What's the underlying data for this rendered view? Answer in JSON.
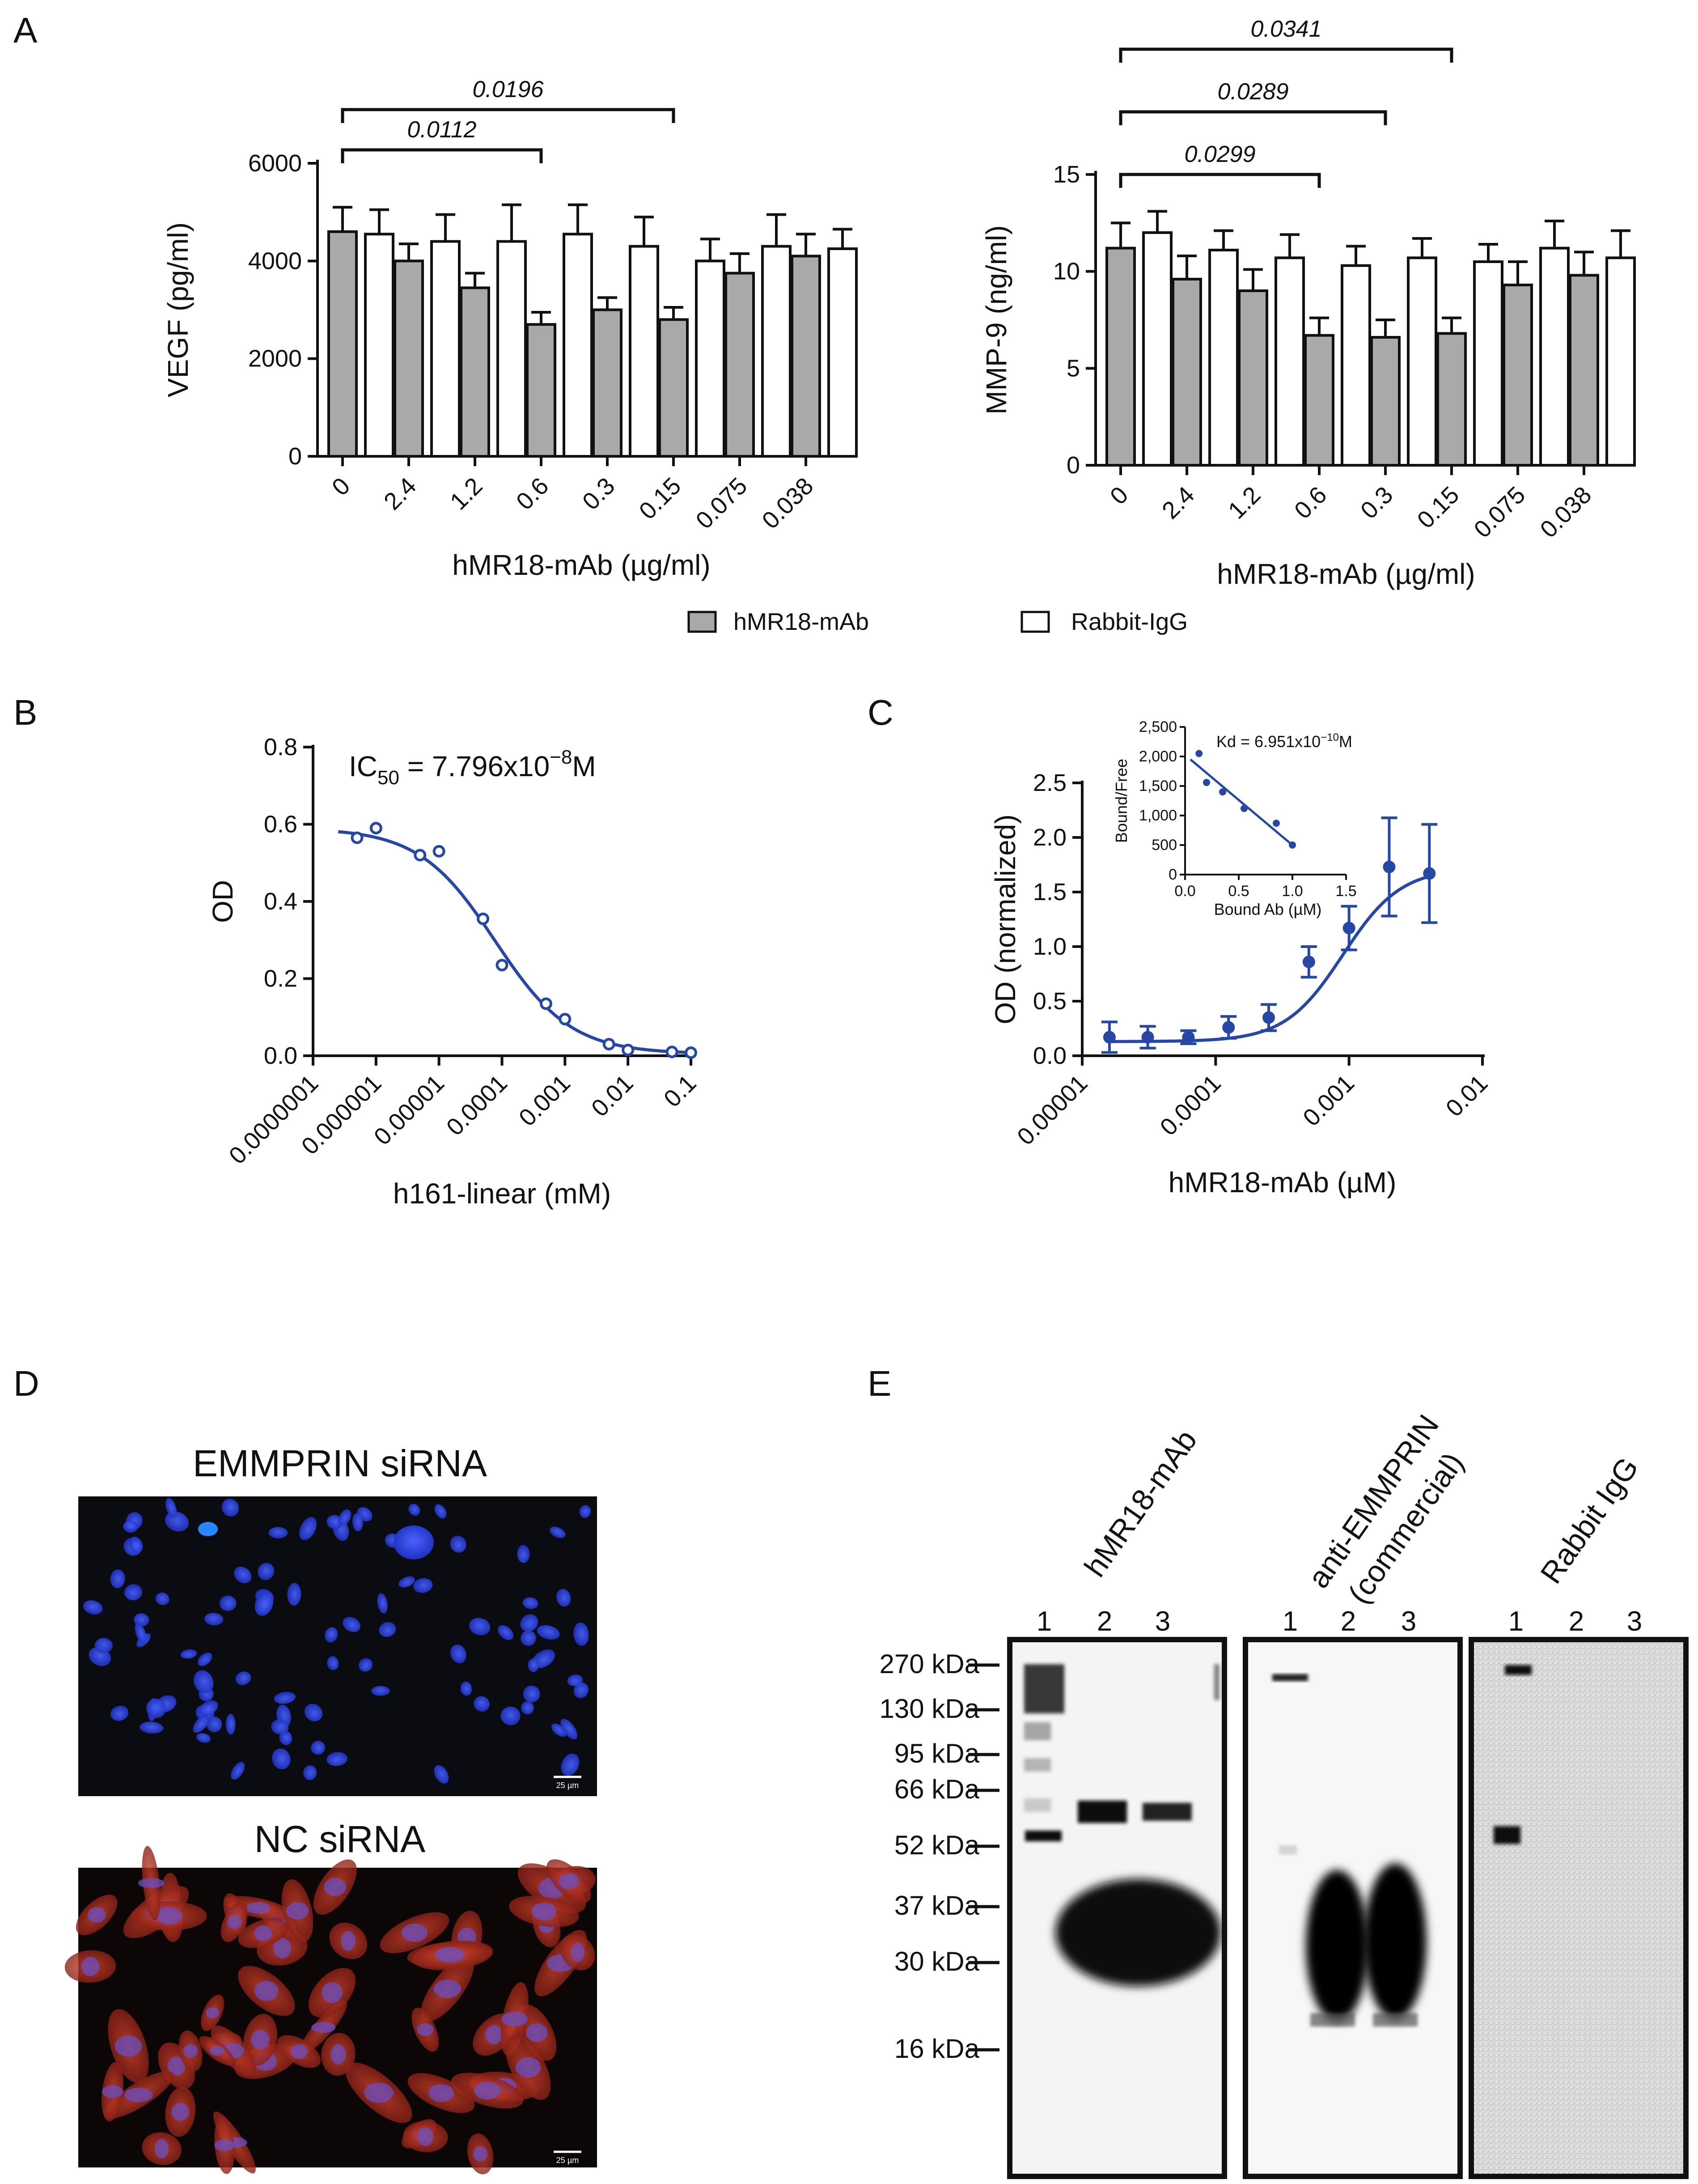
{
  "colors": {
    "hmr18_bar": "#a9a9a9",
    "rabbit_bar": "#ffffff",
    "curve": "#2747a4",
    "axis": "#111111"
  },
  "panel_labels": {
    "a": "A",
    "b": "B",
    "c": "C",
    "d": "D",
    "e": "E"
  },
  "legend": {
    "hmr18": "hMR18-mAb",
    "rabbit": "Rabbit-IgG"
  },
  "chart_data": [
    {
      "id": "A-left",
      "type": "bar",
      "ylabel": "VEGF (pg/ml)",
      "xlabel": "hMR18-mAb (µg/ml)",
      "categories": [
        "0",
        "2.4",
        "1.2",
        "0.6",
        "0.3",
        "0.15",
        "0.075",
        "0.038"
      ],
      "ylim": [
        0,
        6000
      ],
      "yticks": [
        "0",
        "2000",
        "4000",
        "6000"
      ],
      "ytick_values": [
        0,
        2000,
        4000,
        6000
      ],
      "series": [
        {
          "name": "hMR18-mAb",
          "values": [
            4600,
            4000,
            3450,
            2700,
            3000,
            2800,
            3750,
            4100
          ],
          "errors": [
            500,
            350,
            300,
            250,
            250,
            250,
            400,
            450
          ]
        },
        {
          "name": "Rabbit-IgG",
          "values": [
            4550,
            4400,
            4400,
            4550,
            4300,
            4000,
            4300,
            4250
          ],
          "errors": [
            500,
            550,
            750,
            600,
            600,
            450,
            650,
            400
          ]
        }
      ],
      "brackets": [
        {
          "from": 0,
          "to": 3,
          "label": "0.0112",
          "level": 0
        },
        {
          "from": 0,
          "to": 5,
          "label": "0.0196",
          "level": 1
        }
      ]
    },
    {
      "id": "A-right",
      "type": "bar",
      "ylabel": "MMP-9 (ng/ml)",
      "xlabel": "hMR18-mAb (µg/ml)",
      "categories": [
        "0",
        "2.4",
        "1.2",
        "0.6",
        "0.3",
        "0.15",
        "0.075",
        "0.038"
      ],
      "ylim": [
        0,
        15
      ],
      "yticks": [
        "0",
        "5",
        "10",
        "15"
      ],
      "ytick_values": [
        0,
        5,
        10,
        15
      ],
      "series": [
        {
          "name": "hMR18-mAb",
          "values": [
            11.2,
            9.6,
            9.0,
            6.7,
            6.6,
            6.8,
            9.3,
            9.8
          ],
          "errors": [
            1.3,
            1.2,
            1.1,
            0.9,
            0.9,
            0.8,
            1.2,
            1.2
          ]
        },
        {
          "name": "Rabbit-IgG",
          "values": [
            12.0,
            11.1,
            10.7,
            10.3,
            10.7,
            10.5,
            11.2,
            10.7
          ],
          "errors": [
            1.1,
            1.0,
            1.2,
            1.0,
            1.0,
            0.9,
            1.4,
            1.4
          ]
        }
      ],
      "brackets": [
        {
          "from": 0,
          "to": 3,
          "label": "0.0299",
          "level": 0
        },
        {
          "from": 0,
          "to": 4,
          "label": "0.0289",
          "level": 1
        },
        {
          "from": 0,
          "to": 5,
          "label": "0.0341",
          "level": 2
        }
      ]
    },
    {
      "id": "B",
      "type": "scatter",
      "xscale": "log",
      "xlabel": "h161-linear (mM)",
      "ylabel": "OD",
      "xlim": [
        1e-07,
        0.1
      ],
      "ylim": [
        0,
        0.8
      ],
      "xticks": [
        "0.0000001",
        "0.000001",
        "0.00001",
        "0.0001",
        "0.001",
        "0.01",
        "0.1"
      ],
      "xtick_values": [
        1e-07,
        1e-06,
        1e-05,
        0.0001,
        0.001,
        0.01,
        0.1
      ],
      "yticks": [
        "0.0",
        "0.2",
        "0.4",
        "0.6",
        "0.8"
      ],
      "ytick_values": [
        0,
        0.2,
        0.4,
        0.6,
        0.8
      ],
      "annotation": {
        "prefix": "IC",
        "sub": "50",
        "middle": " = 7.796x10",
        "sup": "−8",
        "suffix": "M"
      },
      "points": [
        {
          "x": 5e-07,
          "y": 0.565
        },
        {
          "x": 1e-06,
          "y": 0.59
        },
        {
          "x": 5e-06,
          "y": 0.52
        },
        {
          "x": 1e-05,
          "y": 0.53
        },
        {
          "x": 5e-05,
          "y": 0.355
        },
        {
          "x": 0.0001,
          "y": 0.235
        },
        {
          "x": 0.0005,
          "y": 0.135
        },
        {
          "x": 0.001,
          "y": 0.095
        },
        {
          "x": 0.005,
          "y": 0.03
        },
        {
          "x": 0.01,
          "y": 0.015
        },
        {
          "x": 0.05,
          "y": 0.01
        },
        {
          "x": 0.1,
          "y": 0.008
        }
      ],
      "fit": {
        "top": 0.59,
        "bottom": 0.005,
        "ic50": 7.796e-05,
        "hill": 0.72
      }
    },
    {
      "id": "C",
      "type": "line",
      "xscale": "log",
      "xlabel": "hMR18-mAb (µM)",
      "ylabel": "OD (normalized)",
      "xlim": [
        1e-05,
        0.01
      ],
      "ylim": [
        0,
        2.5
      ],
      "xticks": [
        "0.00001",
        "0.0001",
        "0.001",
        "0.01"
      ],
      "xtick_values": [
        1e-05,
        0.0001,
        0.001,
        0.01
      ],
      "yticks": [
        "0.0",
        "0.5",
        "1.0",
        "1.5",
        "2.0",
        "2.5"
      ],
      "ytick_values": [
        0,
        0.5,
        1.0,
        1.5,
        2.0,
        2.5
      ],
      "points": [
        {
          "x": 1.6e-05,
          "y": 0.17,
          "err": 0.14
        },
        {
          "x": 3.1e-05,
          "y": 0.17,
          "err": 0.1
        },
        {
          "x": 6.25e-05,
          "y": 0.17,
          "err": 0.06
        },
        {
          "x": 0.000125,
          "y": 0.26,
          "err": 0.1
        },
        {
          "x": 0.00025,
          "y": 0.35,
          "err": 0.12
        },
        {
          "x": 0.0005,
          "y": 0.86,
          "err": 0.14
        },
        {
          "x": 0.001,
          "y": 1.17,
          "err": 0.2
        },
        {
          "x": 0.002,
          "y": 1.73,
          "err": 0.45
        },
        {
          "x": 0.004,
          "y": 1.67,
          "err": 0.45
        }
      ],
      "fit": {
        "bottom": 0.13,
        "top": 1.72,
        "ec50": 0.0009,
        "hill": 2.0
      },
      "inset": {
        "type": "scatter",
        "xlabel": "Bound Ab (µM)",
        "ylabel": "Bound/Free",
        "xlim": [
          0,
          1.5
        ],
        "ylim": [
          0,
          2500
        ],
        "xticks": [
          "0.0",
          "0.5",
          "1.0",
          "1.5"
        ],
        "xtick_values": [
          0,
          0.5,
          1.0,
          1.5
        ],
        "yticks": [
          "0",
          "500",
          "1,000",
          "1,500",
          "2,000",
          "2,500"
        ],
        "ytick_values": [
          0,
          500,
          1000,
          1500,
          2000,
          2500
        ],
        "annotation": {
          "prefix": "Kd = 6.951x10",
          "sup": "−10",
          "suffix": "M"
        },
        "points": [
          {
            "x": 0.13,
            "y": 2050
          },
          {
            "x": 0.2,
            "y": 1560
          },
          {
            "x": 0.35,
            "y": 1400
          },
          {
            "x": 0.55,
            "y": 1120
          },
          {
            "x": 0.85,
            "y": 870
          },
          {
            "x": 1.0,
            "y": 500
          }
        ],
        "fit": {
          "x1": 0.05,
          "y1": 1950,
          "x2": 1.0,
          "y2": 500
        }
      }
    }
  ],
  "panel_d": {
    "top_label": "EMMPRIN siRNA",
    "bottom_label": "NC siRNA",
    "scale_bar": "25 µm"
  },
  "panel_e": {
    "blots": [
      {
        "title_lines": [
          "hMR18-mAb"
        ],
        "lanes": [
          "1",
          "2",
          "3"
        ]
      },
      {
        "title_lines": [
          "anti-EMMPRIN",
          "(commercial)"
        ],
        "lanes": [
          "1",
          "2",
          "3"
        ]
      },
      {
        "title_lines": [
          "Rabbit IgG"
        ],
        "lanes": [
          "1",
          "2",
          "3"
        ]
      }
    ],
    "markers": [
      "270 kDa",
      "130 kDa",
      "95 kDa",
      "66 kDa",
      "52 kDa",
      "37 kDa",
      "30 kDa",
      "16 kDa"
    ]
  }
}
